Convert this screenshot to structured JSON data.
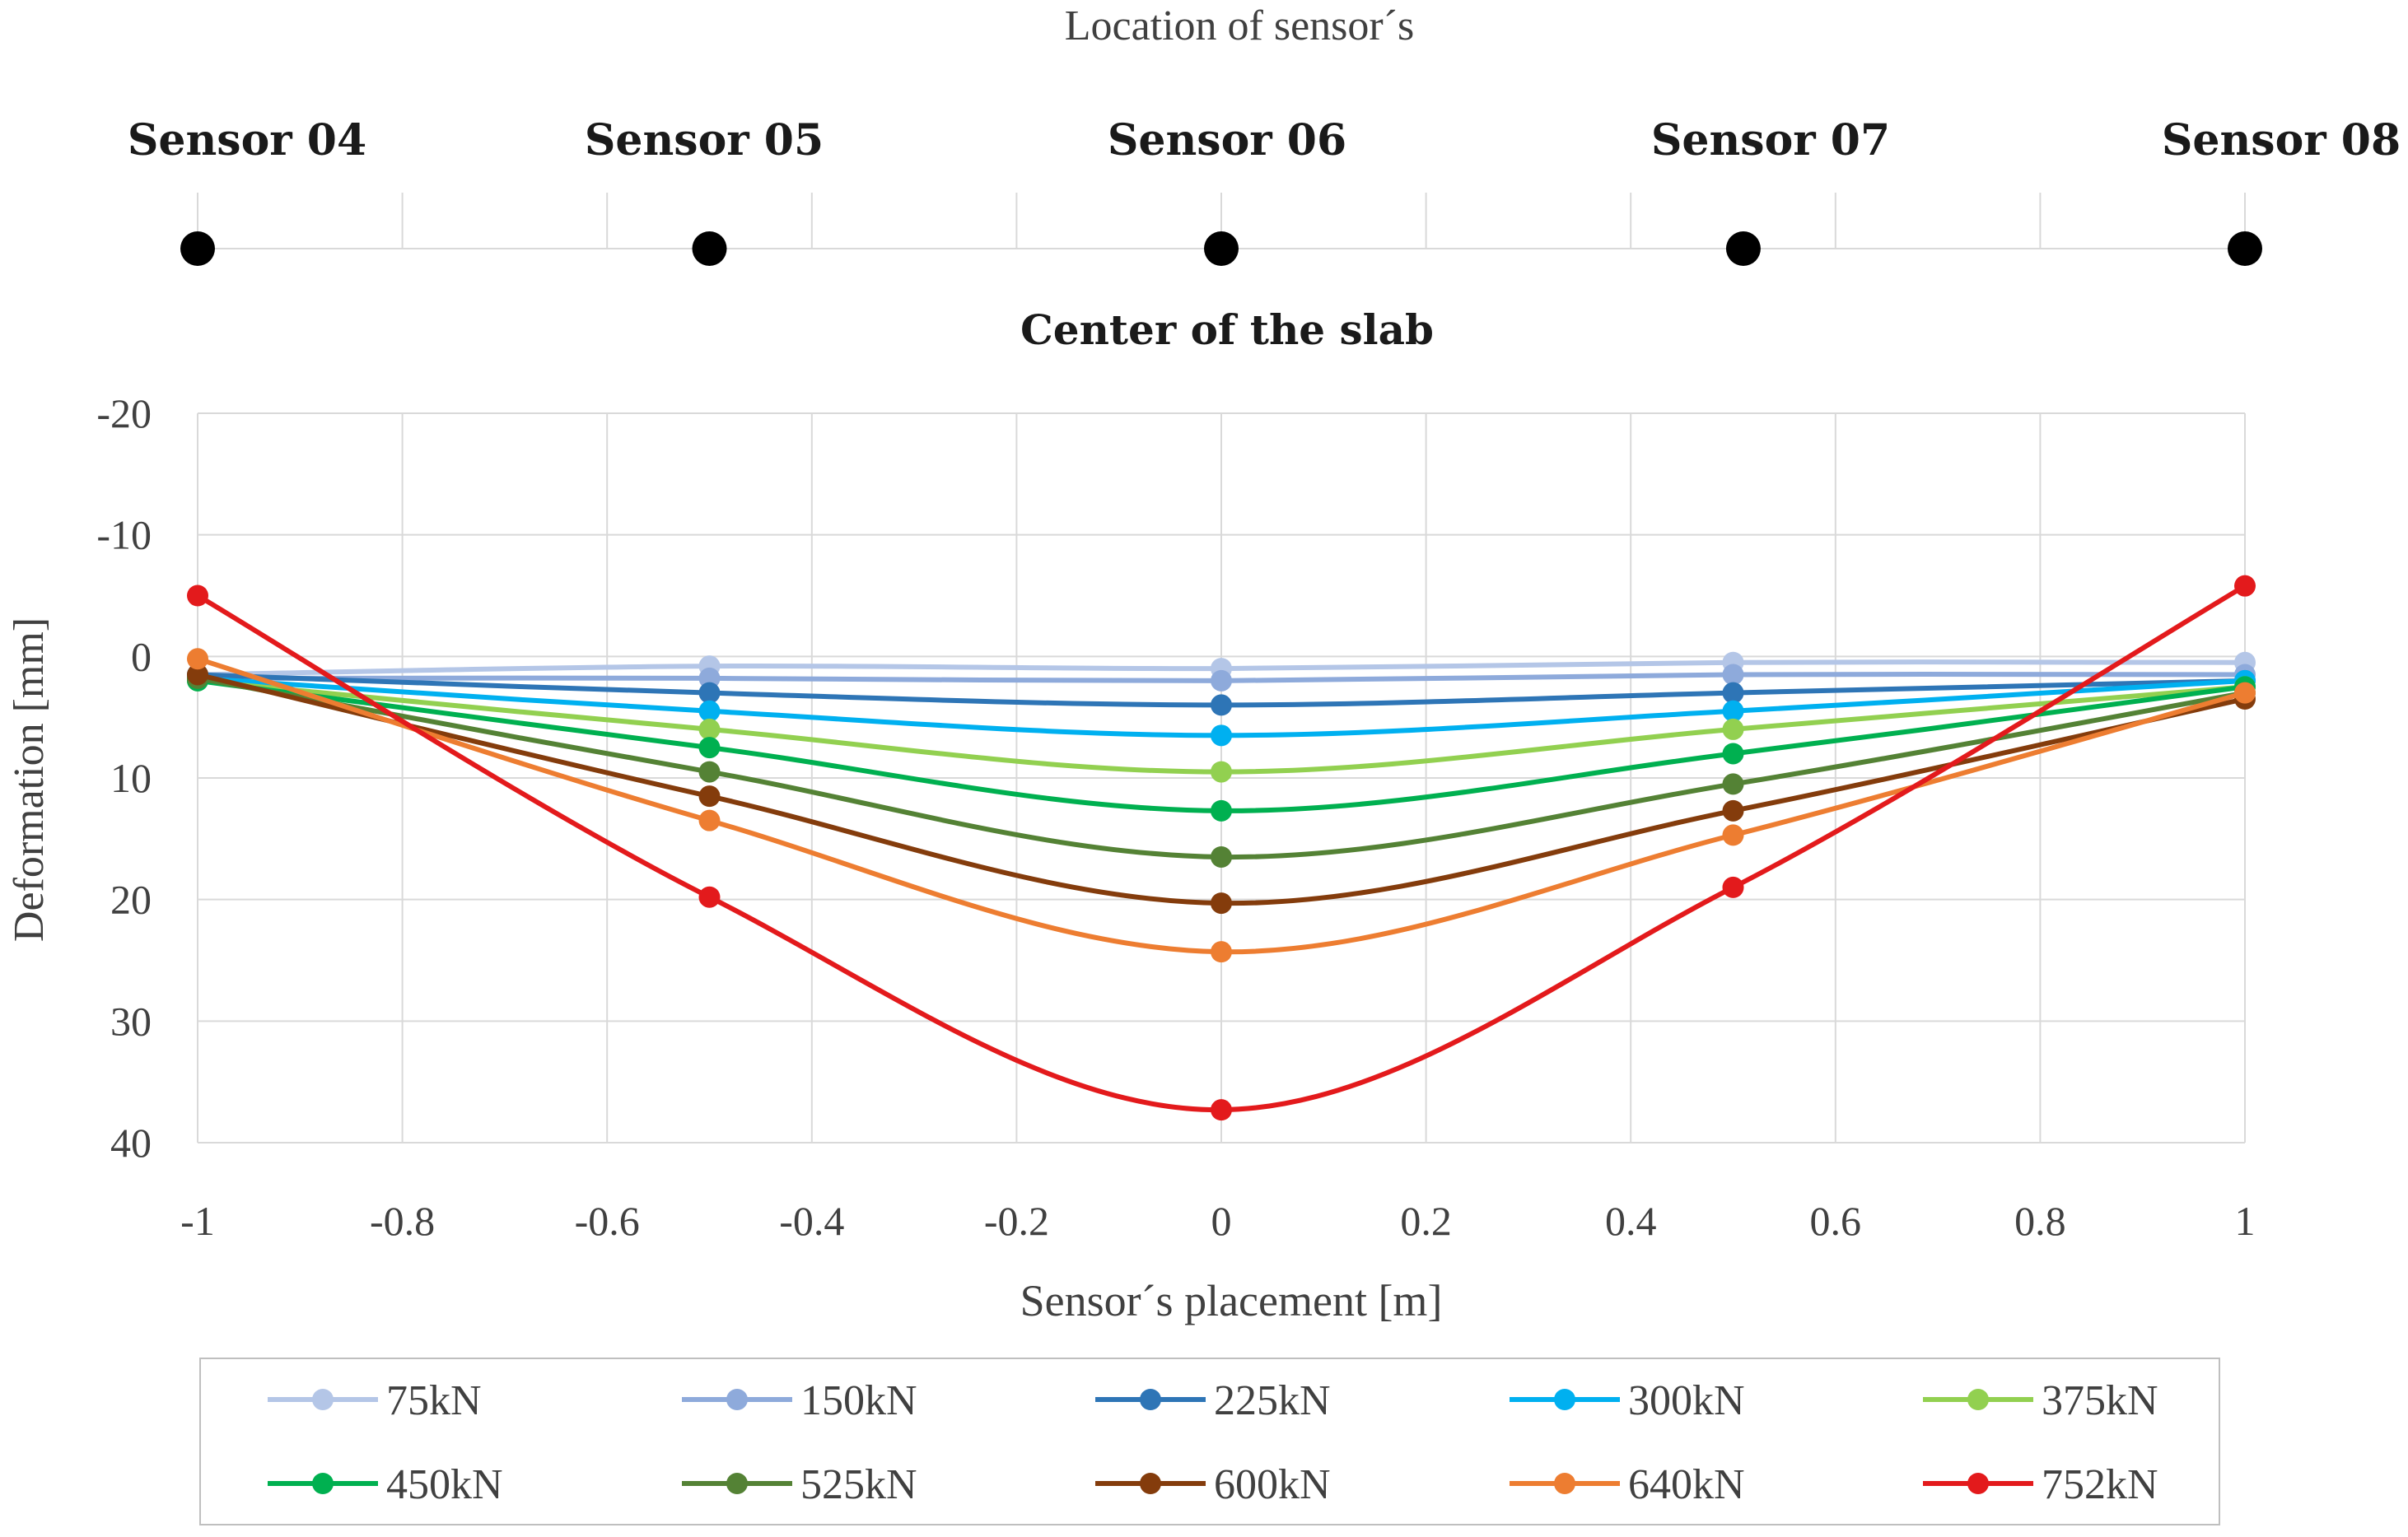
{
  "chart_data": {
    "type": "line",
    "top_title": "Location of sensor´s",
    "sensors": [
      {
        "label": "Sensor 04",
        "x": -1
      },
      {
        "label": "Sensor 05",
        "x": -0.5
      },
      {
        "label": "Sensor 06",
        "x": 0
      },
      {
        "label": "Sensor 07",
        "x": 0.51
      },
      {
        "label": "Sensor 08",
        "x": 1
      }
    ],
    "subtitle": "Center of the slab",
    "xlabel": "Sensor´s placement [m]",
    "ylabel": "Deformation [mm]",
    "xlim": [
      -1,
      1
    ],
    "ylim": [
      -20,
      40
    ],
    "y_inverted": true,
    "xticks": [
      -1,
      -0.8,
      -0.6,
      -0.4,
      -0.2,
      0,
      0.2,
      0.4,
      0.6,
      0.8,
      1
    ],
    "xtick_labels": [
      "-1",
      "-0.8",
      "-0.6",
      "-0.4",
      "-0.2",
      "0",
      "0.2",
      "0.4",
      "0.6",
      "0.8",
      "1"
    ],
    "yticks": [
      -20,
      -10,
      0,
      10,
      20,
      30,
      40
    ],
    "ytick_labels": [
      "-20",
      "-10",
      "0",
      "10",
      "20",
      "30",
      "40"
    ],
    "grid": true,
    "legend_position": "bottom",
    "x": [
      -1,
      -0.5,
      0,
      0.5,
      1
    ],
    "series": [
      {
        "name": "75kN",
        "color": "#b4c6e7",
        "values": [
          1.5,
          0.8,
          1.0,
          0.5,
          0.5
        ]
      },
      {
        "name": "150kN",
        "color": "#8eaadb",
        "values": [
          1.8,
          1.8,
          2.0,
          1.5,
          1.5
        ]
      },
      {
        "name": "225kN",
        "color": "#2e75b6",
        "values": [
          1.5,
          3.0,
          4.0,
          3.0,
          2.0
        ]
      },
      {
        "name": "300kN",
        "color": "#00b0f0",
        "values": [
          1.8,
          4.5,
          6.5,
          4.5,
          2.0
        ]
      },
      {
        "name": "375kN",
        "color": "#92d050",
        "values": [
          2.0,
          6.0,
          9.5,
          6.0,
          2.5
        ]
      },
      {
        "name": "450kN",
        "color": "#00b050",
        "values": [
          2.0,
          7.5,
          12.7,
          8.0,
          2.5
        ]
      },
      {
        "name": "525kN",
        "color": "#548235",
        "values": [
          1.8,
          9.5,
          16.5,
          10.5,
          3.0
        ]
      },
      {
        "name": "600kN",
        "color": "#843c0c",
        "values": [
          1.5,
          11.5,
          20.3,
          12.7,
          3.5
        ]
      },
      {
        "name": "640kN",
        "color": "#ed7d31",
        "values": [
          0.2,
          13.5,
          24.3,
          14.7,
          3.0
        ]
      },
      {
        "name": "752kN",
        "color": "#e31a1c",
        "values": [
          -5.0,
          19.8,
          37.3,
          19.0,
          -5.8
        ]
      }
    ]
  }
}
